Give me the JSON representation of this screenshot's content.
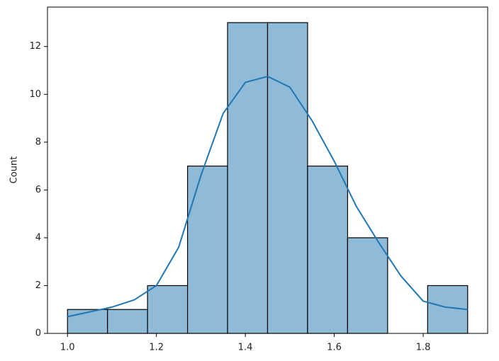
{
  "chart_data": {
    "type": "histogram",
    "ylabel": "Count",
    "bins": [
      1.0,
      1.09,
      1.18,
      1.27,
      1.36,
      1.45,
      1.54,
      1.63,
      1.72,
      1.81,
      1.9
    ],
    "counts": [
      1,
      1,
      2,
      7,
      13,
      13,
      7,
      4,
      0,
      2
    ],
    "color": "#8fbbd9",
    "edgecolor": "#000000",
    "kde": {
      "color": "#1f77b4",
      "x": [
        1.0,
        1.05,
        1.1,
        1.15,
        1.2,
        1.25,
        1.3,
        1.35,
        1.4,
        1.45,
        1.5,
        1.55,
        1.6,
        1.65,
        1.7,
        1.75,
        1.8,
        1.85,
        1.9
      ],
      "values": [
        0.7,
        0.9,
        1.1,
        1.4,
        2.0,
        3.6,
        6.6,
        9.2,
        10.5,
        10.75,
        10.3,
        8.9,
        7.2,
        5.3,
        3.8,
        2.4,
        1.35,
        1.1,
        1.0
      ]
    },
    "xlim": [
      0.955,
      1.945
    ],
    "ylim": [
      0,
      13.65
    ],
    "xticks": [
      {
        "value": 1.0,
        "label": "1.0"
      },
      {
        "value": 1.2,
        "label": "1.2"
      },
      {
        "value": 1.4,
        "label": "1.4"
      },
      {
        "value": 1.6,
        "label": "1.6"
      },
      {
        "value": 1.8,
        "label": "1.8"
      }
    ],
    "yticks": [
      0,
      2,
      4,
      6,
      8,
      10,
      12
    ]
  }
}
